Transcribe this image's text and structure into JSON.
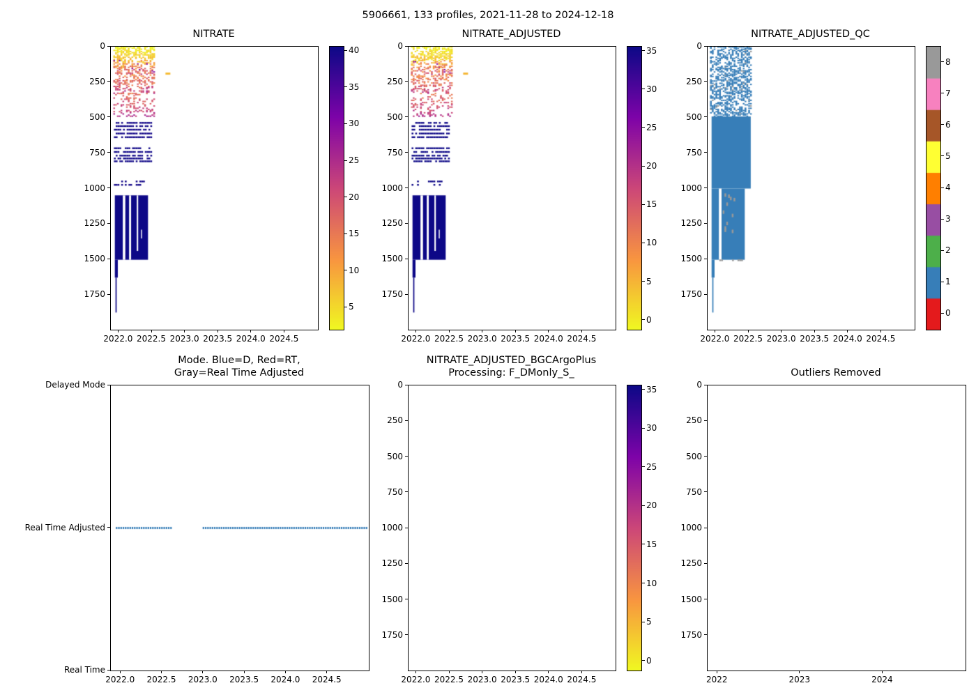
{
  "figure": {
    "suptitle": "5906661, 133 profiles, 2021-11-28 to 2024-12-18"
  },
  "palette": {
    "plasma_stops": [
      "#0d0887",
      "#7e03a8",
      "#cc4778",
      "#f89540",
      "#f0f921"
    ],
    "qc_colors": [
      "#e41a1c",
      "#377eb8",
      "#4daf4a",
      "#984ea3",
      "#ff7f00",
      "#ffff33",
      "#a65628",
      "#f781bf",
      "#999999"
    ]
  },
  "chart_data": [
    {
      "id": "nitrate",
      "type": "heatmap",
      "title": "NITRATE",
      "xlabel": "",
      "ylabel": "",
      "xlim": [
        2021.88,
        2025.0
      ],
      "ylim": [
        1995,
        0
      ],
      "x_ticks": [
        2022.0,
        2022.5,
        2023.0,
        2023.5,
        2024.0,
        2024.5
      ],
      "x_tick_labels": [
        "2022.0",
        "2022.5",
        "2023.0",
        "2023.5",
        "2024.0",
        "2024.5"
      ],
      "y_ticks": [
        0,
        250,
        500,
        750,
        1000,
        1250,
        1500,
        1750
      ],
      "y_tick_labels": [
        "0",
        "250",
        "500",
        "750",
        "1000",
        "1250",
        "1500",
        "1750"
      ],
      "profile_interval_years": 0.0274,
      "colorbar": {
        "style": "continuous",
        "cmap": "plasma_r",
        "vmin": 2.0,
        "vmax": 40.6,
        "ticks": [
          5,
          10,
          15,
          20,
          25,
          30,
          35,
          40
        ]
      },
      "regions": [
        {
          "kind": "speckle",
          "t": [
            2021.93,
            2022.555
          ],
          "d": [
            2,
            90
          ],
          "v": [
            2.5,
            8
          ],
          "jitter": 2,
          "density": 0.55
        },
        {
          "kind": "speckle",
          "t": [
            2021.93,
            2022.555
          ],
          "d": [
            90,
            200
          ],
          "v": [
            8,
            19
          ],
          "jitter": 5,
          "density": 0.45,
          "outlier_v": 29,
          "outlier_p": 0.05
        },
        {
          "kind": "speckle",
          "t": [
            2021.93,
            2022.555
          ],
          "d": [
            200,
            330
          ],
          "v": [
            14,
            22
          ],
          "jitter": 4,
          "density": 0.32
        },
        {
          "kind": "speckle",
          "t": [
            2021.93,
            2022.555
          ],
          "d": [
            330,
            495
          ],
          "v": [
            16,
            24
          ],
          "jitter": 3,
          "density": 0.2
        },
        {
          "kind": "hlines",
          "t": [
            2021.94,
            2022.5
          ],
          "depths": [
            537,
            560,
            585,
            612,
            638
          ],
          "v": 40,
          "density": 0.8
        },
        {
          "kind": "hlines",
          "t": [
            2021.94,
            2022.5
          ],
          "depths": [
            716,
            742,
            768,
            788,
            808
          ],
          "v": 40.3,
          "density": 0.8
        },
        {
          "kind": "hlines",
          "t": [
            2021.94,
            2022.38
          ],
          "depths": [
            950,
            974
          ],
          "v": 40,
          "density": 0.35
        },
        {
          "kind": "rect",
          "t": [
            2021.94,
            2022.44
          ],
          "d": [
            1048,
            1502
          ],
          "v": 41
        },
        {
          "kind": "rect",
          "t": [
            2021.94,
            2021.985
          ],
          "d": [
            1502,
            1628
          ],
          "v": 41
        },
        {
          "kind": "rect",
          "t": [
            2021.95,
            2021.968
          ],
          "d": [
            1628,
            1874
          ],
          "v": 41
        },
        {
          "kind": "gap",
          "t": [
            2022.06,
            2022.098
          ],
          "d": [
            1048,
            1502
          ]
        },
        {
          "kind": "gap",
          "t": [
            2022.155,
            2022.185
          ],
          "d": [
            1048,
            1502
          ]
        },
        {
          "kind": "gap",
          "t": [
            2022.27,
            2022.292
          ],
          "d": [
            1048,
            1440
          ]
        },
        {
          "kind": "gap",
          "t": [
            2022.335,
            2022.35
          ],
          "d": [
            1290,
            1352
          ]
        },
        {
          "kind": "dot",
          "t": 2022.74,
          "d": 190,
          "v": 8,
          "w": 7,
          "h": 3
        }
      ]
    },
    {
      "id": "nitrate_adjusted",
      "type": "heatmap",
      "title": "NITRATE_ADJUSTED",
      "xlabel": "",
      "ylabel": "",
      "xlim": [
        2021.88,
        2025.0
      ],
      "ylim": [
        1995,
        0
      ],
      "x_ticks": [
        2022.0,
        2022.5,
        2023.0,
        2023.5,
        2024.0,
        2024.5
      ],
      "x_tick_labels": [
        "2022.0",
        "2022.5",
        "2023.0",
        "2023.5",
        "2024.0",
        "2024.5"
      ],
      "y_ticks": [
        0,
        250,
        500,
        750,
        1000,
        1250,
        1500,
        1750
      ],
      "y_tick_labels": [
        "0",
        "250",
        "500",
        "750",
        "1000",
        "1250",
        "1500",
        "1750"
      ],
      "profile_interval_years": 0.0274,
      "colorbar": {
        "style": "continuous",
        "cmap": "plasma_r",
        "vmin": -1.2,
        "vmax": 35.6,
        "ticks": [
          0,
          5,
          10,
          15,
          20,
          25,
          30,
          35
        ]
      },
      "regions": [
        {
          "kind": "speckle",
          "t": [
            2021.93,
            2022.555
          ],
          "d": [
            2,
            90
          ],
          "v": [
            -1,
            4
          ],
          "jitter": 2,
          "density": 0.55
        },
        {
          "kind": "speckle",
          "t": [
            2021.93,
            2022.555
          ],
          "d": [
            90,
            200
          ],
          "v": [
            4,
            15
          ],
          "jitter": 5,
          "density": 0.45,
          "outlier_v": 25,
          "outlier_p": 0.05
        },
        {
          "kind": "speckle",
          "t": [
            2021.93,
            2022.555
          ],
          "d": [
            200,
            330
          ],
          "v": [
            10,
            18
          ],
          "jitter": 4,
          "density": 0.32
        },
        {
          "kind": "speckle",
          "t": [
            2021.93,
            2022.555
          ],
          "d": [
            330,
            495
          ],
          "v": [
            12,
            20
          ],
          "jitter": 3,
          "density": 0.2
        },
        {
          "kind": "hlines",
          "t": [
            2021.94,
            2022.5
          ],
          "depths": [
            537,
            560,
            585,
            612,
            638
          ],
          "v": 35.5,
          "density": 0.8
        },
        {
          "kind": "hlines",
          "t": [
            2021.94,
            2022.5
          ],
          "depths": [
            716,
            742,
            768,
            788,
            808
          ],
          "v": 35.8,
          "density": 0.8
        },
        {
          "kind": "hlines",
          "t": [
            2021.94,
            2022.38
          ],
          "depths": [
            950,
            974
          ],
          "v": 35.5,
          "density": 0.35
        },
        {
          "kind": "rect",
          "t": [
            2021.94,
            2022.44
          ],
          "d": [
            1048,
            1502
          ],
          "v": 36.5
        },
        {
          "kind": "rect",
          "t": [
            2021.94,
            2021.985
          ],
          "d": [
            1502,
            1628
          ],
          "v": 36.5
        },
        {
          "kind": "rect",
          "t": [
            2021.95,
            2021.968
          ],
          "d": [
            1628,
            1874
          ],
          "v": 36.5
        },
        {
          "kind": "gap",
          "t": [
            2022.06,
            2022.098
          ],
          "d": [
            1048,
            1502
          ]
        },
        {
          "kind": "gap",
          "t": [
            2022.155,
            2022.185
          ],
          "d": [
            1048,
            1502
          ]
        },
        {
          "kind": "gap",
          "t": [
            2022.27,
            2022.292
          ],
          "d": [
            1048,
            1440
          ]
        },
        {
          "kind": "gap",
          "t": [
            2022.335,
            2022.35
          ],
          "d": [
            1290,
            1352
          ]
        },
        {
          "kind": "dot",
          "t": 2022.74,
          "d": 190,
          "v": 5,
          "w": 7,
          "h": 3
        }
      ]
    },
    {
      "id": "nitrate_adjusted_qc",
      "type": "heatmap",
      "title": "NITRATE_ADJUSTED_QC",
      "xlabel": "",
      "ylabel": "",
      "xlim": [
        2021.88,
        2025.0
      ],
      "ylim": [
        1995,
        0
      ],
      "x_ticks": [
        2022.0,
        2022.5,
        2023.0,
        2023.5,
        2024.0,
        2024.5
      ],
      "x_tick_labels": [
        "2022.0",
        "2022.5",
        "2023.0",
        "2023.5",
        "2024.0",
        "2024.5"
      ],
      "y_ticks": [
        0,
        250,
        500,
        750,
        1000,
        1250,
        1500,
        1750
      ],
      "y_tick_labels": [
        "0",
        "250",
        "500",
        "750",
        "1000",
        "1250",
        "1500",
        "1750"
      ],
      "profile_interval_years": 0.0274,
      "colorbar": {
        "style": "discrete",
        "cmap": "Set1",
        "ticks": [
          0,
          1,
          2,
          3,
          4,
          5,
          6,
          7,
          8
        ]
      },
      "regions": [
        {
          "kind": "speckle_cat",
          "t": [
            2021.93,
            2022.56
          ],
          "d": [
            2,
            492
          ],
          "density": 0.5,
          "cat": 1,
          "alt_cat": 8,
          "alt_p": 0.05
        },
        {
          "kind": "rect_cat",
          "t": [
            2021.94,
            2022.53
          ],
          "d": [
            492,
            1000
          ],
          "cat": 1
        },
        {
          "kind": "rect_cat",
          "t": [
            2021.94,
            2022.44
          ],
          "d": [
            1000,
            1502
          ],
          "cat": 1
        },
        {
          "kind": "rect_cat",
          "t": [
            2021.94,
            2021.985
          ],
          "d": [
            1502,
            1628
          ],
          "cat": 1
        },
        {
          "kind": "rect_cat",
          "t": [
            2021.95,
            2021.968
          ],
          "d": [
            1628,
            1874
          ],
          "cat": 1
        },
        {
          "kind": "gap",
          "t": [
            2022.05,
            2022.09
          ],
          "d": [
            1000,
            1502
          ]
        },
        {
          "kind": "speckle_cat",
          "t": [
            2022.12,
            2022.31
          ],
          "d": [
            1030,
            1330
          ],
          "density": 0.05,
          "cat": 8,
          "mh": 5
        },
        {
          "kind": "hlines_cat",
          "t": [
            2022.07,
            2022.42
          ],
          "depths": [
            1506
          ],
          "cat": 8,
          "density": 0.5
        }
      ]
    },
    {
      "id": "mode",
      "type": "scatter",
      "title": "Mode. Blue=D, Red=RT,\nGray=Real Time Adjusted",
      "xlabel": "",
      "ylabel": "",
      "xlim": [
        2021.88,
        2025.0
      ],
      "ylim": [
        0,
        2
      ],
      "x_ticks": [
        2022.0,
        2022.5,
        2023.0,
        2023.5,
        2024.0,
        2024.5
      ],
      "x_tick_labels": [
        "2022.0",
        "2022.5",
        "2023.0",
        "2023.5",
        "2024.0",
        "2024.5"
      ],
      "y_ticks": [
        0,
        1,
        2
      ],
      "y_tick_labels": [
        "Real Time",
        "Real Time Adjusted",
        "Delayed Mode"
      ],
      "profile_interval_years": 0.0274,
      "legend": {
        "D": "blue",
        "RT": "red",
        "Real Time Adjusted": "gray"
      },
      "regions": [
        {
          "kind": "markers",
          "y": 1,
          "color": "#377eb8",
          "segments": [
            [
              2021.95,
              2022.61
            ],
            [
              2023.0,
              2024.98
            ]
          ]
        }
      ]
    },
    {
      "id": "bgc_argo_plus_processing",
      "type": "heatmap",
      "title": "NITRATE_ADJUSTED_BGCArgoPlus\nProcessing: F_DMonly_S_",
      "xlabel": "",
      "ylabel": "",
      "xlim": [
        2021.88,
        2025.0
      ],
      "ylim": [
        1995,
        0
      ],
      "x_ticks": [
        2022.0,
        2022.5,
        2023.0,
        2023.5,
        2024.0,
        2024.5
      ],
      "x_tick_labels": [
        "2022.0",
        "2022.5",
        "2023.0",
        "2023.5",
        "2024.0",
        "2024.5"
      ],
      "y_ticks": [
        0,
        250,
        500,
        750,
        1000,
        1250,
        1500,
        1750
      ],
      "y_tick_labels": [
        "0",
        "250",
        "500",
        "750",
        "1000",
        "1250",
        "1500",
        "1750"
      ],
      "profile_interval_years": 0.0274,
      "colorbar": {
        "style": "continuous",
        "cmap": "plasma_r",
        "vmin": -1.2,
        "vmax": 35.6,
        "ticks": [
          0,
          5,
          10,
          15,
          20,
          25,
          30,
          35
        ]
      },
      "regions": []
    },
    {
      "id": "outliers_removed",
      "type": "scatter",
      "title": "Outliers Removed",
      "xlabel": "",
      "ylabel": "",
      "xlim": [
        2021.88,
        2025.0
      ],
      "ylim": [
        1995,
        0
      ],
      "x_ticks": [
        2022,
        2023,
        2024
      ],
      "x_tick_labels": [
        "2022",
        "2023",
        "2024"
      ],
      "y_ticks": [
        0,
        250,
        500,
        750,
        1000,
        1250,
        1500,
        1750
      ],
      "y_tick_labels": [
        "0",
        "250",
        "500",
        "750",
        "1000",
        "1250",
        "1500",
        "1750"
      ],
      "profile_interval_years": 0.0274,
      "regions": []
    }
  ]
}
